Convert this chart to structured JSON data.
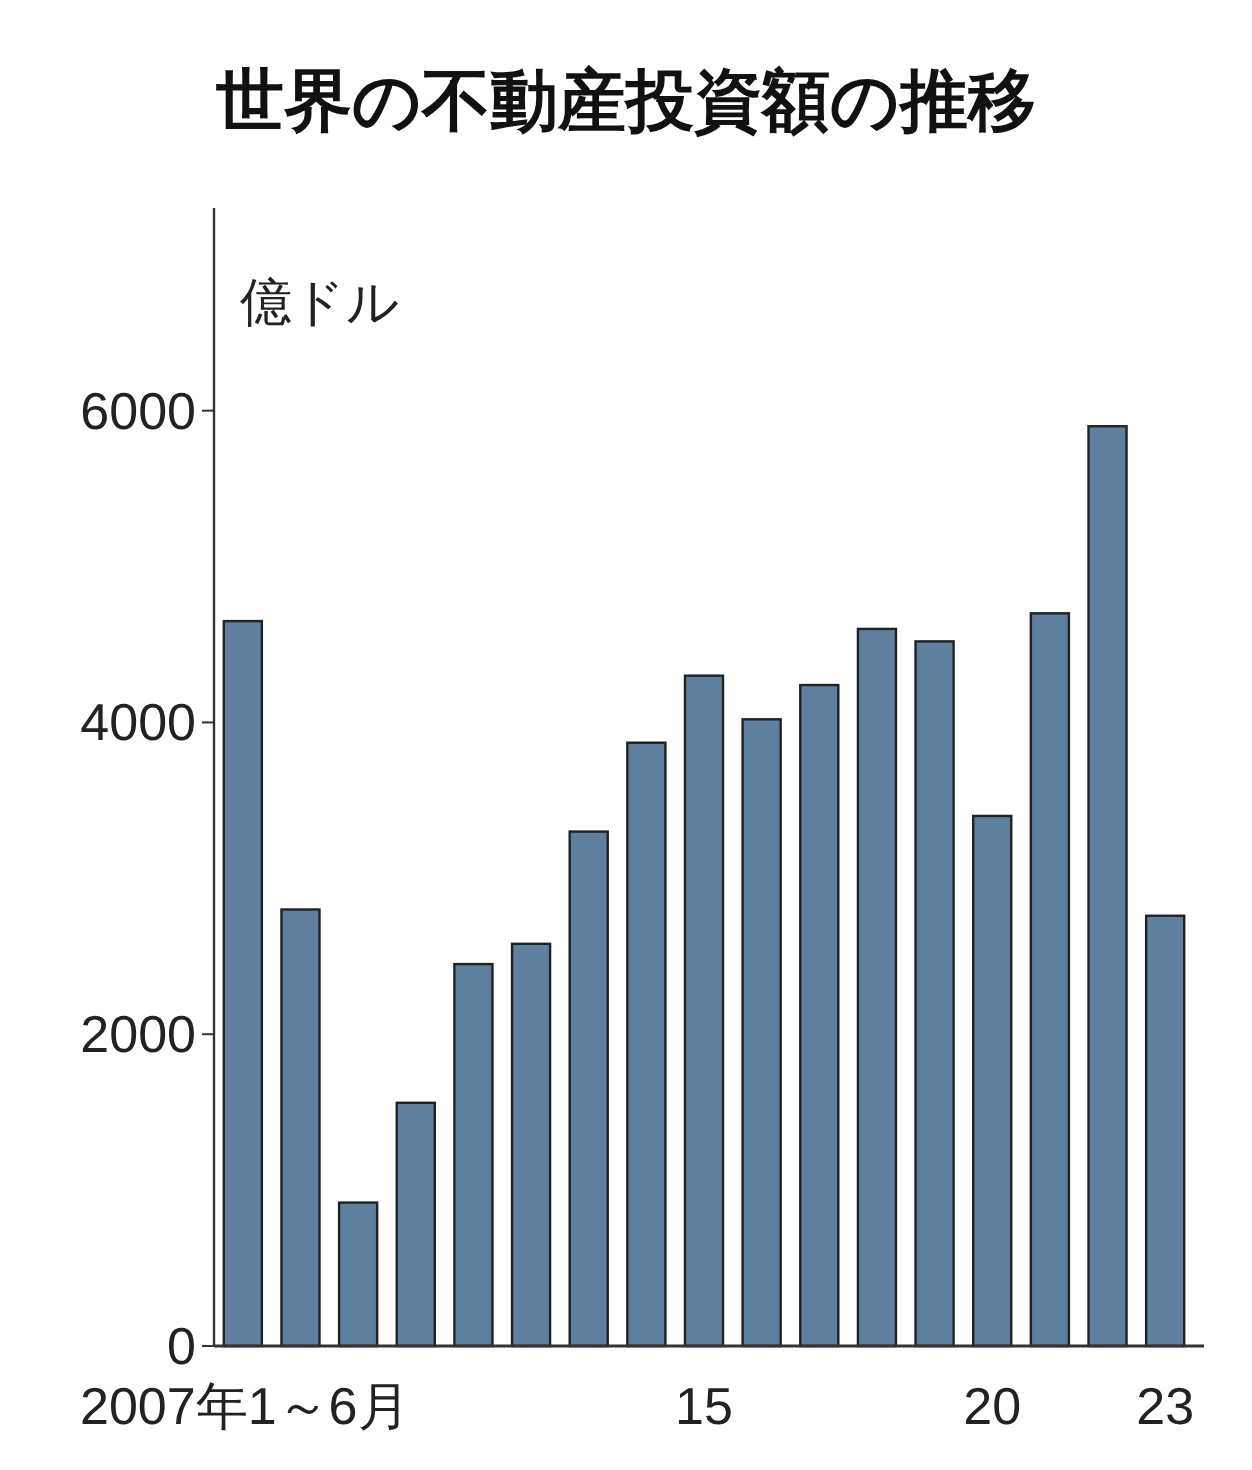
{
  "chart_data": {
    "type": "bar",
    "title": "世界の不動産投資額の推移",
    "ylabel": "億ドル",
    "categories": [
      "2007年1～6月",
      null,
      null,
      null,
      null,
      null,
      null,
      null,
      "15",
      null,
      null,
      null,
      null,
      "20",
      null,
      null,
      "23"
    ],
    "values": [
      4650,
      2800,
      920,
      1560,
      2450,
      2580,
      3300,
      3870,
      4300,
      4020,
      4240,
      4600,
      4520,
      3400,
      4700,
      5900,
      2760
    ],
    "color": "#5f7f9e",
    "ylim": [
      0,
      7300
    ],
    "yticks": [
      0,
      2000,
      4000,
      6000
    ],
    "grid": false
  }
}
